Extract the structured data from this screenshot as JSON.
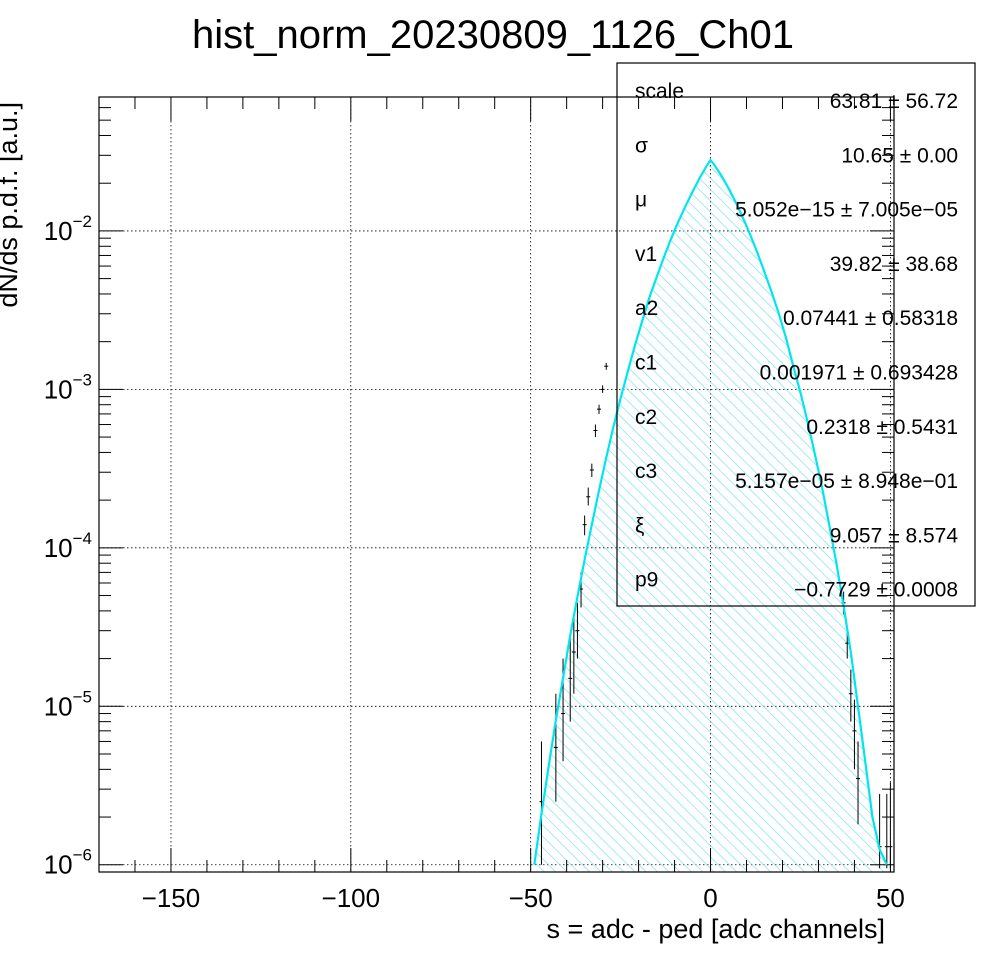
{
  "chart_data": {
    "type": "histogram",
    "title": "hist_norm_20230809_1126_Ch01",
    "xlabel": "s = adc - ped [adc channels]",
    "ylabel": "dN/ds p.d.f. [a.u.]",
    "xlim": [
      -170,
      51
    ],
    "ylim": [
      9e-07,
      0.07
    ],
    "yscale": "log",
    "grid": true,
    "x_ticks": [
      {
        "value": -150,
        "label": "−150"
      },
      {
        "value": -100,
        "label": "−100"
      },
      {
        "value": -50,
        "label": "−50"
      },
      {
        "value": 0,
        "label": "0"
      },
      {
        "value": 50,
        "label": "50"
      }
    ],
    "y_ticks": [
      {
        "value": 1e-06,
        "base": "10",
        "exp": "−6"
      },
      {
        "value": 1e-05,
        "base": "10",
        "exp": "−5"
      },
      {
        "value": 0.0001,
        "base": "10",
        "exp": "−4"
      },
      {
        "value": 0.001,
        "base": "10",
        "exp": "−3"
      },
      {
        "value": 0.01,
        "base": "10",
        "exp": "−2"
      }
    ],
    "fit_curve": {
      "color": "#00e5ee",
      "hatch_color": "#7fe0ee",
      "x": [
        -49,
        -47,
        -45,
        -43,
        -41,
        -39,
        -37,
        -35,
        -33,
        -31,
        -29,
        -27,
        -25,
        -23,
        -21,
        -19,
        -17,
        -15,
        -13,
        -11,
        -9,
        -7,
        -5,
        -3,
        -1,
        0,
        1,
        3,
        5,
        7,
        9,
        11,
        13,
        15,
        17,
        19,
        21,
        23,
        25,
        27,
        29,
        31,
        33,
        35,
        37,
        39,
        41,
        43,
        45,
        47,
        49
      ],
      "y": [
        1e-06,
        2.1e-06,
        4.2e-06,
        8.2e-06,
        1.5e-05,
        2.8e-05,
        4.9e-05,
        8.4e-05,
        0.00014,
        0.00023,
        0.00037,
        0.00058,
        0.00088,
        0.0013,
        0.0019,
        0.0027,
        0.0038,
        0.0051,
        0.0068,
        0.0089,
        0.0114,
        0.0143,
        0.0177,
        0.0216,
        0.0259,
        0.028,
        0.0262,
        0.0224,
        0.0186,
        0.0152,
        0.0121,
        0.0095,
        0.0073,
        0.0055,
        0.0041,
        0.003,
        0.0021,
        0.0014,
        0.00095,
        0.00062,
        0.00039,
        0.00024,
        0.00014,
        8e-05,
        4.3e-05,
        2.2e-05,
        1e-05,
        4.5e-06,
        2e-06,
        1.25e-06,
        1e-06
      ]
    },
    "data_points": [
      {
        "x": -47,
        "y": 2.5e-06,
        "ylo": 1e-06,
        "yhi": 6e-06
      },
      {
        "x": -43,
        "y": 5.5e-06,
        "ylo": 2.5e-06,
        "yhi": 1.2e-05
      },
      {
        "x": -41,
        "y": 9e-06,
        "ylo": 4.5e-06,
        "yhi": 2e-05
      },
      {
        "x": -39,
        "y": 1.5e-05,
        "ylo": 8e-06,
        "yhi": 2.8e-05
      },
      {
        "x": -38,
        "y": 2.2e-05,
        "ylo": 1.2e-05,
        "yhi": 3.8e-05
      },
      {
        "x": -37,
        "y": 3e-05,
        "ylo": 2e-05,
        "yhi": 4.5e-05
      },
      {
        "x": -36,
        "y": 5.5e-05,
        "ylo": 4.2e-05,
        "yhi": 7e-05
      },
      {
        "x": -35,
        "y": 0.00014,
        "ylo": 0.00012,
        "yhi": 0.00016
      },
      {
        "x": -34,
        "y": 0.00021,
        "ylo": 0.000185,
        "yhi": 0.00024
      },
      {
        "x": -33,
        "y": 0.00031,
        "ylo": 0.00028,
        "yhi": 0.00034
      },
      {
        "x": -32,
        "y": 0.00055,
        "ylo": 0.0005,
        "yhi": 0.0006
      },
      {
        "x": -31,
        "y": 0.00075,
        "ylo": 0.0007,
        "yhi": 0.0008
      },
      {
        "x": -30,
        "y": 0.001,
        "ylo": 0.00095,
        "yhi": 0.00106
      },
      {
        "x": -29,
        "y": 0.0014,
        "ylo": 0.00133,
        "yhi": 0.00147
      },
      {
        "x": 37,
        "y": 4.5e-05,
        "ylo": 3.8e-05,
        "yhi": 5.3e-05
      },
      {
        "x": 38,
        "y": 2.5e-05,
        "ylo": 2e-05,
        "yhi": 3.1e-05
      },
      {
        "x": 39,
        "y": 1.2e-05,
        "ylo": 8e-06,
        "yhi": 1.7e-05
      },
      {
        "x": 40,
        "y": 7e-06,
        "ylo": 4e-06,
        "yhi": 1.1e-05
      },
      {
        "x": 41,
        "y": 3.5e-06,
        "ylo": 1.8e-06,
        "yhi": 6e-06
      },
      {
        "x": 47,
        "y": 1.3e-06,
        "ylo": 9.5e-07,
        "yhi": 2.8e-06
      },
      {
        "x": 49,
        "y": 1.3e-06,
        "ylo": 9.5e-07,
        "yhi": 2.8e-06
      },
      {
        "x": 50,
        "y": 1.3e-06,
        "ylo": 9.5e-07,
        "yhi": 3.3e-06
      }
    ],
    "stats": [
      {
        "name": "scale",
        "value": "63.81 ± 56.72"
      },
      {
        "name": "σ",
        "value": "10.65 ± 0.00"
      },
      {
        "name": "μ",
        "value": "5.052e−15 ± 7.005e−05"
      },
      {
        "name": "v1",
        "value": "39.82 ± 38.68"
      },
      {
        "name": "a2",
        "value": "0.07441 ± 0.58318"
      },
      {
        "name": "c1",
        "value": "0.001971 ± 0.693428"
      },
      {
        "name": "c2",
        "value": "0.2318 ± 0.5431"
      },
      {
        "name": "c3",
        "value": "5.157e−05 ± 8.948e−01"
      },
      {
        "name": "ξ",
        "value": "9.057 ± 8.574"
      },
      {
        "name": "p9",
        "value": "−0.7729 ± 0.0008"
      }
    ]
  }
}
